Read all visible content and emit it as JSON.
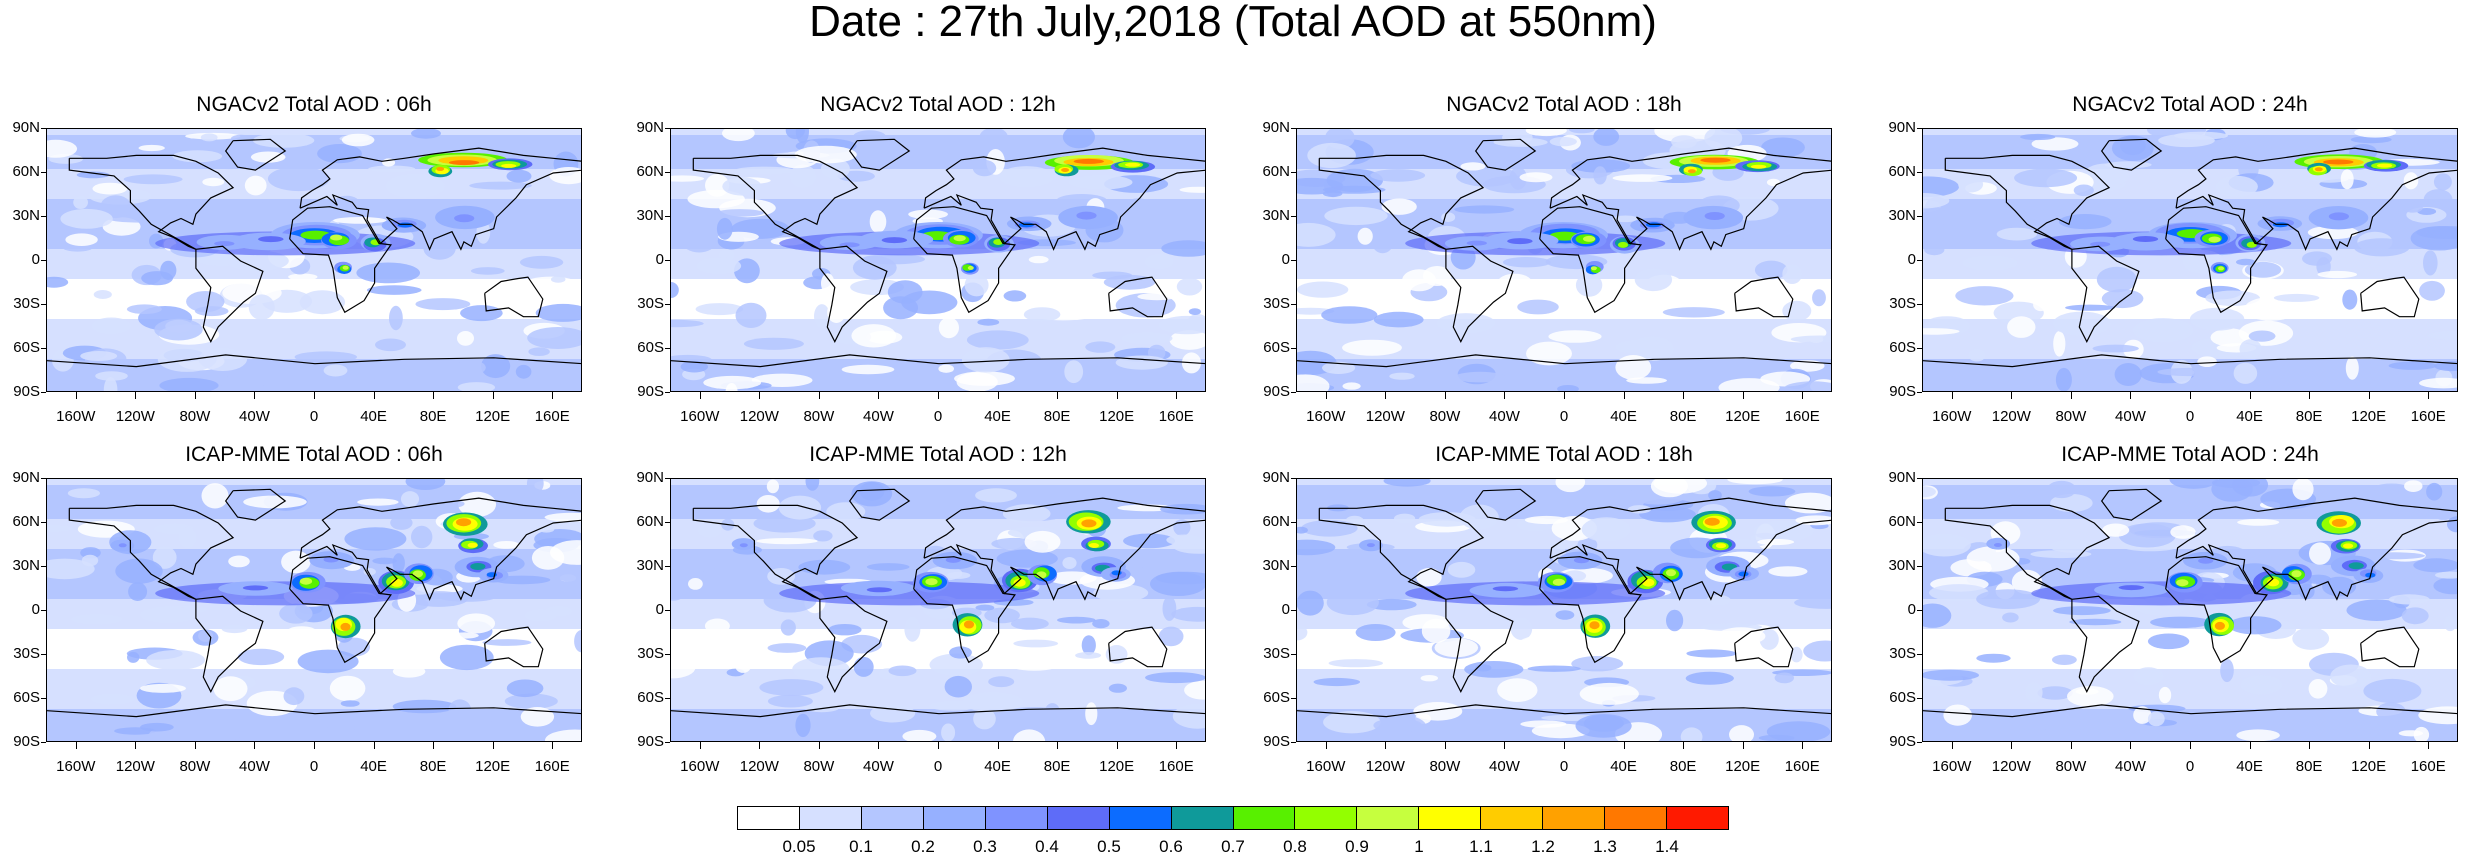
{
  "title": "Date : 27th July,2018 (Total AOD at 550nm)",
  "panels": [
    {
      "title": "NGACv2 Total AOD : 06h"
    },
    {
      "title": "NGACv2 Total AOD : 12h"
    },
    {
      "title": "NGACv2 Total AOD : 18h"
    },
    {
      "title": "NGACv2 Total AOD : 24h"
    },
    {
      "title": "ICAP-MME Total AOD : 06h"
    },
    {
      "title": "ICAP-MME Total AOD : 12h"
    },
    {
      "title": "ICAP-MME Total AOD : 18h"
    },
    {
      "title": "ICAP-MME Total AOD : 24h"
    }
  ],
  "lat_labels": [
    "90N",
    "60N",
    "30N",
    "0",
    "30S",
    "60S",
    "90S"
  ],
  "lon_labels": [
    "160W",
    "120W",
    "80W",
    "40W",
    "0",
    "40E",
    "80E",
    "120E",
    "160E"
  ],
  "colorbar": {
    "labels": [
      "0.05",
      "0.1",
      "0.2",
      "0.3",
      "0.4",
      "0.5",
      "0.6",
      "0.7",
      "0.8",
      "0.9",
      "1",
      "1.1",
      "1.2",
      "1.3",
      "1.4"
    ],
    "colors": [
      "#ffffff",
      "#d6e0ff",
      "#b4c6ff",
      "#96b0ff",
      "#7f93ff",
      "#5e6cf8",
      "#0c6cff",
      "#0f9a9a",
      "#58f000",
      "#93ff00",
      "#c6ff3e",
      "#ffff00",
      "#ffcc00",
      "#ffa100",
      "#ff7800",
      "#ff1a00"
    ]
  }
}
